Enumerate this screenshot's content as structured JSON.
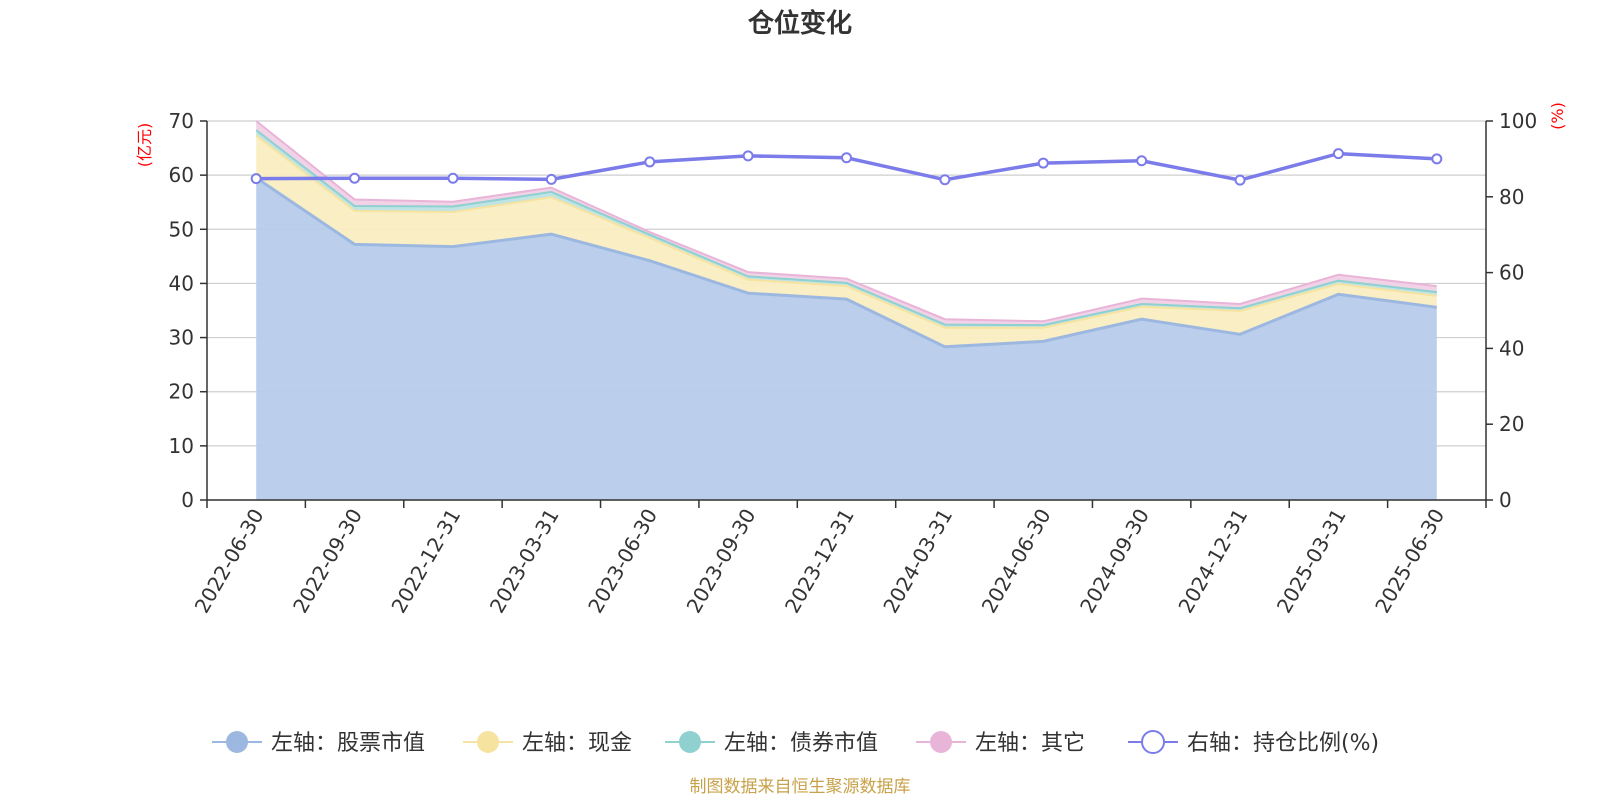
{
  "chart_data": {
    "type": "area",
    "title": "仓位变化",
    "left_axis_unit": "(亿元)",
    "right_axis_unit": "(%)",
    "left_ylim": [
      0,
      70
    ],
    "left_ticks": [
      0,
      10,
      20,
      30,
      40,
      50,
      60,
      70
    ],
    "right_ylim": [
      0,
      100
    ],
    "right_ticks": [
      0,
      20,
      40,
      60,
      80,
      100
    ],
    "grid": true,
    "legend_position": "bottom",
    "categories": [
      "2022-06-30",
      "2022-09-30",
      "2022-12-31",
      "2023-03-31",
      "2023-06-30",
      "2023-09-30",
      "2023-12-31",
      "2024-03-31",
      "2024-06-30",
      "2024-09-30",
      "2024-12-31",
      "2025-03-31",
      "2025-06-30"
    ],
    "stacked_series": [
      {
        "name": "左轴：股票市值",
        "color": "#9db8e0",
        "fill": "#b7cceb",
        "values": [
          59.5,
          47.2,
          46.8,
          49.1,
          44.2,
          38.2,
          37.1,
          28.3,
          29.3,
          33.4,
          30.6,
          38.0,
          35.6
        ]
      },
      {
        "name": "左轴：现金",
        "color": "#f7e3a0",
        "fill": "#f9edc1",
        "values": [
          7.8,
          6.2,
          6.4,
          6.8,
          4.2,
          2.5,
          2.4,
          3.5,
          2.5,
          2.3,
          4.3,
          1.9,
          2.1
        ]
      },
      {
        "name": "左轴：债券市值",
        "color": "#8fd0d0",
        "fill": "#bde3e3",
        "values": [
          1.0,
          0.9,
          1.0,
          1.0,
          0.6,
          0.6,
          0.6,
          0.6,
          0.5,
          0.5,
          0.5,
          0.6,
          0.7
        ]
      },
      {
        "name": "左轴：其它",
        "color": "#e8b4d8",
        "fill": "#f0d0e6",
        "values": [
          1.7,
          1.2,
          0.9,
          0.8,
          0.5,
          0.8,
          0.8,
          1.0,
          0.7,
          1.0,
          0.8,
          1.1,
          1.1
        ]
      }
    ],
    "line_series": {
      "name": "右轴：持仓比例(%)",
      "color": "#7b7bea",
      "values": [
        84.8,
        84.9,
        84.9,
        84.6,
        89.2,
        90.8,
        90.3,
        84.5,
        88.9,
        89.5,
        84.4,
        91.4,
        90.0
      ]
    },
    "source": "制图数据来自恒生聚源数据库"
  }
}
